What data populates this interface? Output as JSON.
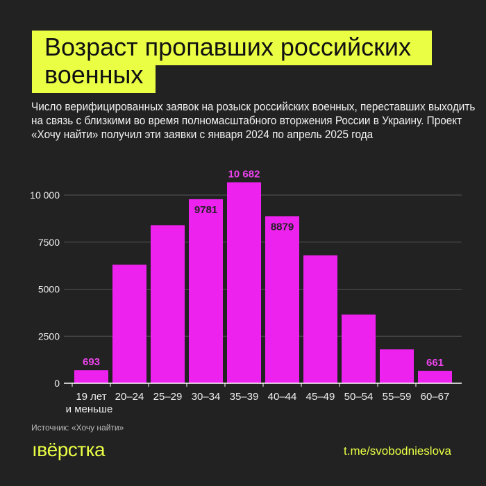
{
  "header": {
    "title": "Возраст пропавших российских военных",
    "subtitle": "Число верифицированных заявок на розыск российских военных, переставших выходить на связь с близкими во время полномасштабного вторжения России в Украину. Проект «Хочу найти» получил эти заявки с января 2024 по апрель 2025 года"
  },
  "footer": {
    "source": "Источник: «Хочу найти»",
    "logo": "ıвёрстка",
    "link": "t.me/svobodnieslova"
  },
  "colors": {
    "background": "#222222",
    "bar": "#ee22ee",
    "accent": "#eaff44",
    "label_outside": "#ee44ee",
    "label_inside": "#222222"
  },
  "chart_data": {
    "type": "bar",
    "categories": [
      "19 лет и меньше",
      "20–24",
      "25–29",
      "30–34",
      "35–39",
      "40–44",
      "45–49",
      "50–54",
      "55–59",
      "60–67"
    ],
    "category_lines": [
      [
        "19 лет",
        "и меньше"
      ],
      [
        "20–24"
      ],
      [
        "25–29"
      ],
      [
        "30–34"
      ],
      [
        "35–39"
      ],
      [
        "40–44"
      ],
      [
        "45–49"
      ],
      [
        "50–54"
      ],
      [
        "55–59"
      ],
      [
        "60–67"
      ]
    ],
    "values": [
      693,
      6300,
      8400,
      9781,
      10682,
      8879,
      6800,
      3650,
      1800,
      661
    ],
    "data_labels": [
      "693",
      "",
      "",
      "9781",
      "10 682",
      "8879",
      "",
      "",
      "",
      "661"
    ],
    "label_inside": [
      false,
      false,
      false,
      true,
      false,
      true,
      false,
      false,
      false,
      false
    ],
    "yticks": [
      0,
      2500,
      5000,
      7500,
      10000
    ],
    "ytick_labels": [
      "0",
      "2500",
      "5000",
      "7500",
      "10 000"
    ],
    "ylim": [
      0,
      10682
    ],
    "grid": true,
    "title": "",
    "xlabel": "",
    "ylabel": ""
  }
}
